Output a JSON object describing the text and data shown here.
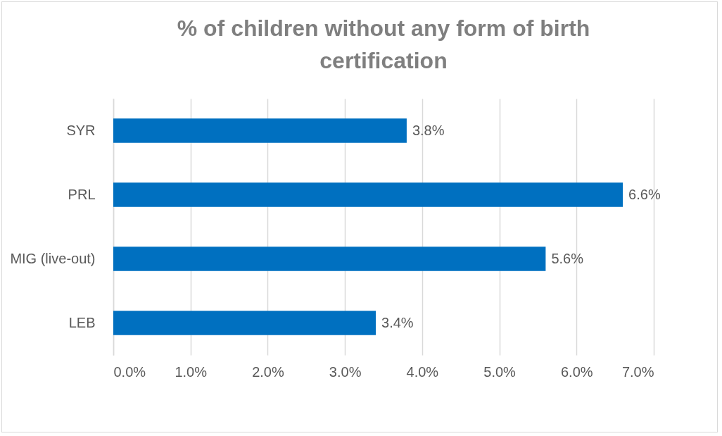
{
  "chart_data": {
    "type": "bar",
    "orientation": "horizontal",
    "title": "% of children without any form of birth certification",
    "categories": [
      "SYR",
      "PRL",
      "MIG (live-out)",
      "LEB"
    ],
    "values": [
      3.8,
      6.6,
      5.6,
      3.4
    ],
    "value_labels": [
      "3.8%",
      "6.6%",
      "5.6%",
      "3.4%"
    ],
    "color": "#0070c0",
    "xlim": [
      0,
      7
    ],
    "xticks": [
      {
        "value": 0,
        "label": "0.0%"
      },
      {
        "value": 1,
        "label": "1.0%"
      },
      {
        "value": 2,
        "label": "2.0%"
      },
      {
        "value": 3,
        "label": "3.0%"
      },
      {
        "value": 4,
        "label": "4.0%"
      },
      {
        "value": 5,
        "label": "5.0%"
      },
      {
        "value": 6,
        "label": "6.0%"
      },
      {
        "value": 7,
        "label": "7.0%"
      }
    ],
    "grid": "x"
  }
}
